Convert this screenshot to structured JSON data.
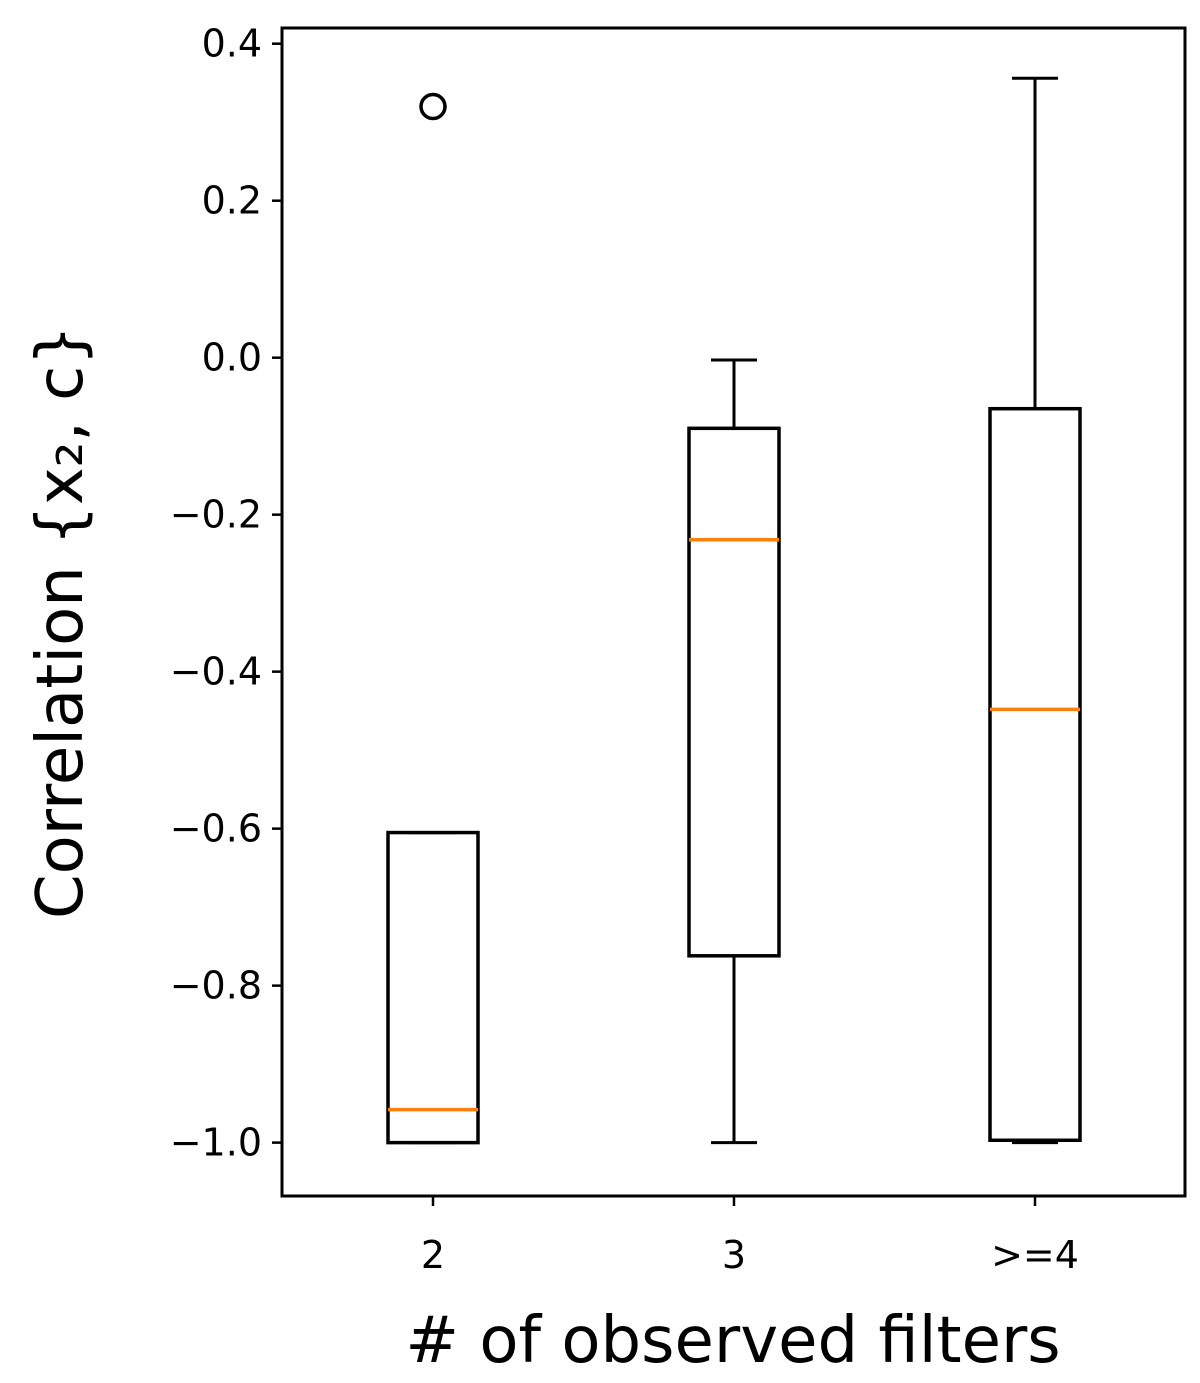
{
  "chart_data": {
    "type": "box",
    "title": "",
    "xlabel": "# of observed filters",
    "ylabel": "Correlation {x₂, c}",
    "ylim": [
      -1.068,
      0.42
    ],
    "yticks": [
      0.4,
      0.2,
      0.0,
      -0.2,
      -0.4,
      -0.6,
      -0.8,
      -1.0
    ],
    "ytick_labels": [
      "0.4",
      "0.2",
      "0.0",
      "−0.2",
      "−0.4",
      "−0.6",
      "−0.8",
      "−1.0"
    ],
    "categories": [
      "2",
      "3",
      ">=4"
    ],
    "boxes": [
      {
        "category": "2",
        "whisker_low": -1.0,
        "q1": -1.0,
        "median": -0.958,
        "q3": -0.605,
        "whisker_high": -0.605,
        "outliers": [
          0.32
        ]
      },
      {
        "category": "3",
        "whisker_low": -1.0,
        "q1": -0.762,
        "median": -0.232,
        "q3": -0.09,
        "whisker_high": -0.003,
        "outliers": []
      },
      {
        "category": ">=4",
        "whisker_low": -1.0,
        "q1": -0.997,
        "median": -0.448,
        "q3": -0.065,
        "whisker_high": 0.356,
        "outliers": []
      }
    ],
    "grid": false,
    "colors": {
      "box": "#000000",
      "median": "#ff7f0e",
      "outlier": "#000000"
    }
  }
}
